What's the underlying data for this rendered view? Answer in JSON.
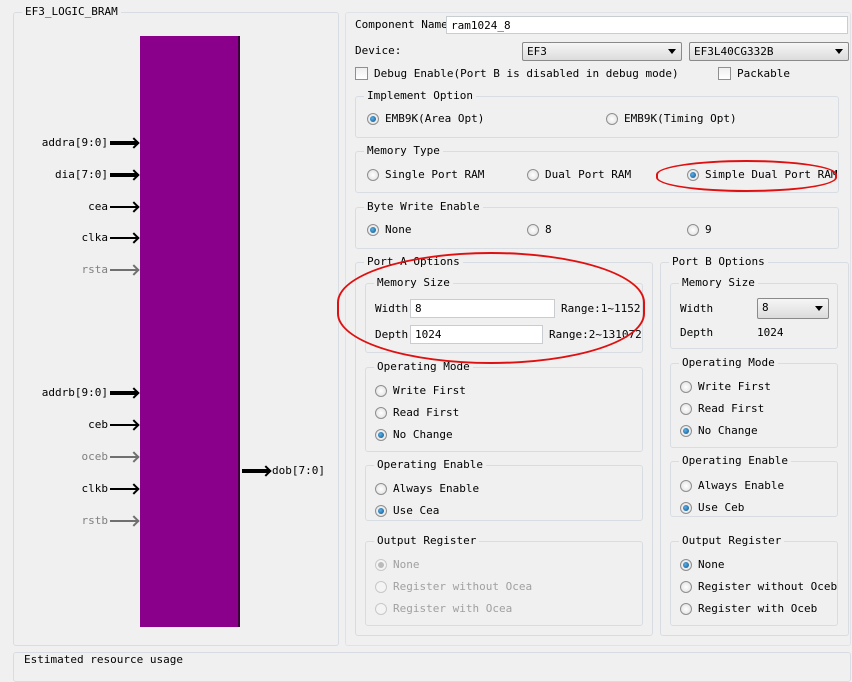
{
  "symbol": {
    "title": "EF3_LOGIC_BRAM",
    "block_color": "#8b008b",
    "inputs": [
      {
        "label": "addra[9:0]",
        "bus": true,
        "enabled": true
      },
      {
        "label": "dia[7:0]",
        "bus": true,
        "enabled": true
      },
      {
        "label": "cea",
        "bus": false,
        "enabled": true
      },
      {
        "label": "clka",
        "bus": false,
        "enabled": true
      },
      {
        "label": "rsta",
        "bus": false,
        "enabled": false
      },
      {
        "label": "addrb[9:0]",
        "bus": true,
        "enabled": true
      },
      {
        "label": "ceb",
        "bus": false,
        "enabled": true
      },
      {
        "label": "oceb",
        "bus": false,
        "enabled": false
      },
      {
        "label": "clkb",
        "bus": false,
        "enabled": true
      },
      {
        "label": "rstb",
        "bus": false,
        "enabled": false
      }
    ],
    "output": {
      "label": "dob[7:0]",
      "bus": true
    }
  },
  "config": {
    "component_name_label": "Component Name",
    "component_name": "ram1024_8",
    "device_label": "Device:",
    "device_family": "EF3",
    "device_part": "EF3L40CG332B",
    "debug_enable_label": "Debug Enable(Port B is disabled in debug mode)",
    "debug_enable": false,
    "packable_label": "Packable",
    "packable": false
  },
  "groups": {
    "implement": {
      "title": "Implement Option",
      "options": [
        "EMB9K(Area Opt)",
        "EMB9K(Timing Opt)"
      ],
      "selected": 0,
      "disabled": false
    },
    "memtype": {
      "title": "Memory Type",
      "options": [
        "Single Port RAM",
        "Dual Port RAM",
        "Simple Dual Port RAM"
      ],
      "selected": 2,
      "disabled": false
    },
    "bytewe": {
      "title": "Byte Write Enable",
      "options": [
        "None",
        "8",
        "9"
      ],
      "selected": 0,
      "disabled": false
    },
    "a_opmode": {
      "title": "Operating Mode",
      "options": [
        "Write First",
        "Read First",
        "No Change"
      ],
      "selected": 2,
      "disabled": false
    },
    "a_openable": {
      "title": "Operating Enable",
      "options": [
        "Always Enable",
        "Use Cea"
      ],
      "selected": 1,
      "disabled": false
    },
    "a_outreg": {
      "title": "Output Register",
      "options": [
        "None",
        "Register without Ocea",
        "Register with Ocea"
      ],
      "selected": 0,
      "disabled": true
    },
    "b_opmode": {
      "title": "Operating Mode",
      "options": [
        "Write First",
        "Read First",
        "No Change"
      ],
      "selected": 2,
      "disabled": false
    },
    "b_openable": {
      "title": "Operating Enable",
      "options": [
        "Always Enable",
        "Use Ceb"
      ],
      "selected": 1,
      "disabled": false
    },
    "b_outreg": {
      "title": "Output Register",
      "options": [
        "None",
        "Register without Oceb",
        "Register with Oceb"
      ],
      "selected": 0,
      "disabled": false
    }
  },
  "port_a": {
    "title": "Port A Options",
    "memsize_title": "Memory Size",
    "width_label": "Width",
    "width": "8",
    "width_range": "Range:1~1152",
    "depth_label": "Depth",
    "depth": "1024",
    "depth_range": "Range:2~131072"
  },
  "port_b": {
    "title": "Port B Options",
    "memsize_title": "Memory Size",
    "width_label": "Width",
    "width": "8",
    "depth_label": "Depth",
    "depth": "1024"
  },
  "resource": {
    "title": "Estimated resource usage"
  },
  "annotation_color": "#e01010"
}
